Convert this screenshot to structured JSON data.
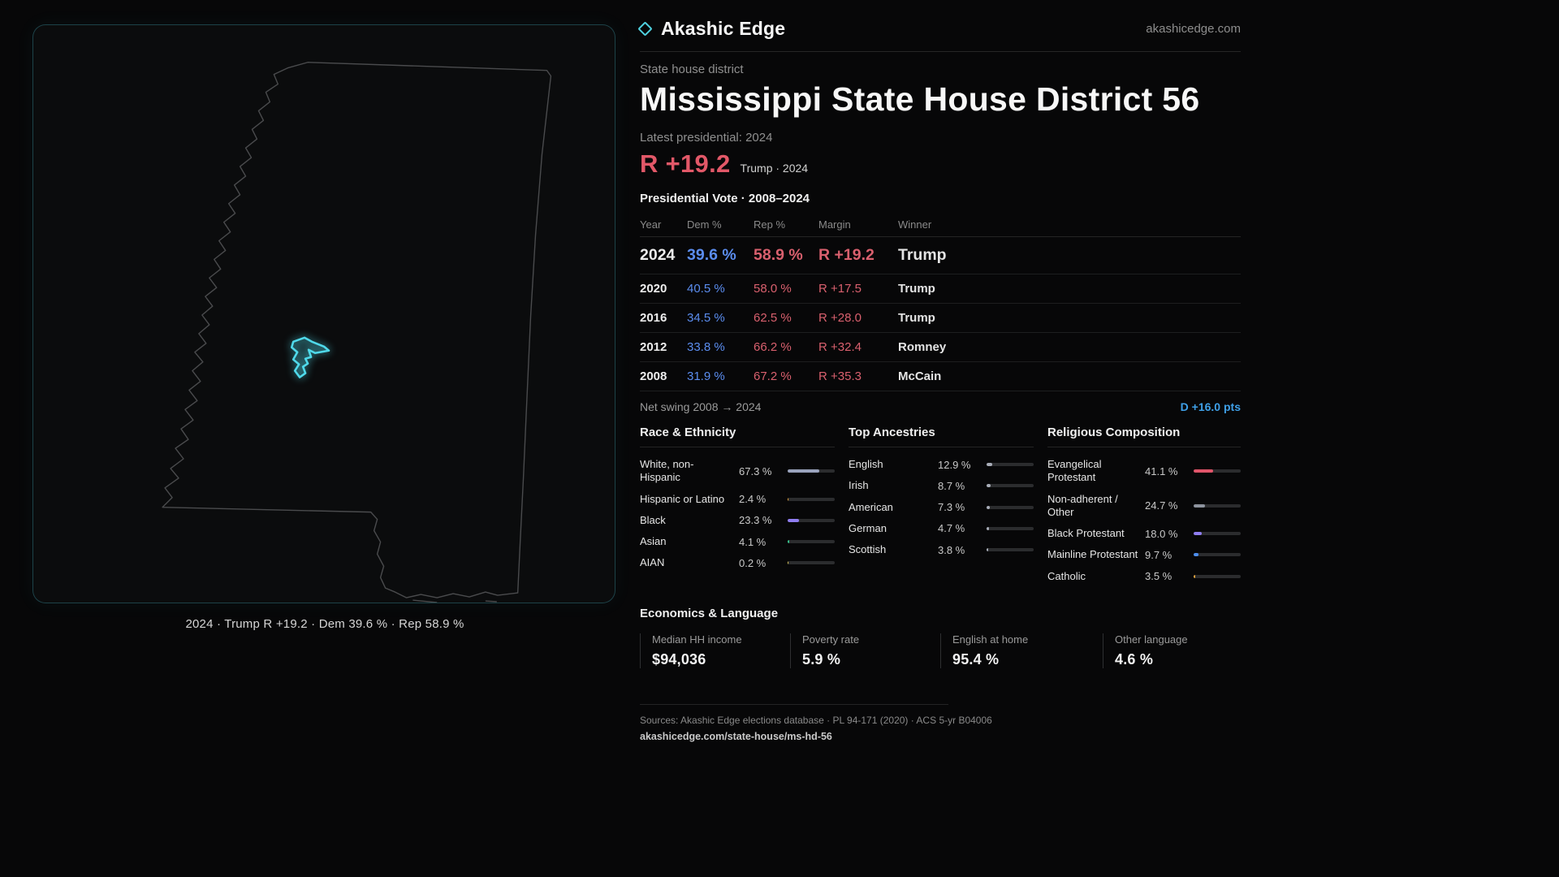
{
  "brand": {
    "name": "Akashic Edge",
    "domain": "akashicedge.com",
    "accent_color": "#4fd1e0"
  },
  "map": {
    "caption": "2024 · Trump R +19.2 · Dem 39.6 % · Rep 58.9 %"
  },
  "header": {
    "kicker": "State house district",
    "title": "Mississippi State House District 56",
    "latest_label": "Latest presidential: 2024",
    "margin_value": "R +19.2",
    "margin_sub": "Trump · 2024",
    "margin_color": "#e25868"
  },
  "vote_table": {
    "title": "Presidential Vote · 2008–2024",
    "columns": [
      "Year",
      "Dem %",
      "Rep %",
      "Margin",
      "Winner"
    ],
    "rows": [
      {
        "year": "2024",
        "dem": "39.6 %",
        "rep": "58.9 %",
        "margin": "R +19.2",
        "winner": "Trump"
      },
      {
        "year": "2020",
        "dem": "40.5 %",
        "rep": "58.0 %",
        "margin": "R +17.5",
        "winner": "Trump"
      },
      {
        "year": "2016",
        "dem": "34.5 %",
        "rep": "62.5 %",
        "margin": "R +28.0",
        "winner": "Trump"
      },
      {
        "year": "2012",
        "dem": "33.8 %",
        "rep": "66.2 %",
        "margin": "R +32.4",
        "winner": "Romney"
      },
      {
        "year": "2008",
        "dem": "31.9 %",
        "rep": "67.2 %",
        "margin": "R +35.3",
        "winner": "McCain"
      }
    ],
    "net_swing_label": "Net swing 2008 → 2024",
    "net_swing_value": "D +16.0 pts",
    "dem_color": "#5b8def",
    "rep_color": "#d9606e"
  },
  "demographics": {
    "race": {
      "title": "Race & Ethnicity",
      "items": [
        {
          "label": "White, non-Hispanic",
          "value": "67.3 %",
          "pct": 67.3,
          "color": "#9aa3bd"
        },
        {
          "label": "Hispanic or Latino",
          "value": "2.4 %",
          "pct": 2.4,
          "color": "#e2a23c"
        },
        {
          "label": "Black",
          "value": "23.3 %",
          "pct": 23.3,
          "color": "#8f7df0"
        },
        {
          "label": "Asian",
          "value": "4.1 %",
          "pct": 4.1,
          "color": "#35c08a"
        },
        {
          "label": "AIAN",
          "value": "0.2 %",
          "pct": 0.2,
          "color": "#d8c35a"
        }
      ]
    },
    "ancestries": {
      "title": "Top Ancestries",
      "items": [
        {
          "label": "English",
          "value": "12.9 %",
          "pct": 12.9,
          "color": "#a8adb8"
        },
        {
          "label": "Irish",
          "value": "8.7 %",
          "pct": 8.7,
          "color": "#a8adb8"
        },
        {
          "label": "American",
          "value": "7.3 %",
          "pct": 7.3,
          "color": "#a8adb8"
        },
        {
          "label": "German",
          "value": "4.7 %",
          "pct": 4.7,
          "color": "#a8adb8"
        },
        {
          "label": "Scottish",
          "value": "3.8 %",
          "pct": 3.8,
          "color": "#a8adb8"
        }
      ]
    },
    "religion": {
      "title": "Religious Composition",
      "items": [
        {
          "label": "Evangelical Protestant",
          "value": "41.1 %",
          "pct": 41.1,
          "color": "#e0556a"
        },
        {
          "label": "Non-adherent / Other",
          "value": "24.7 %",
          "pct": 24.7,
          "color": "#8d939e"
        },
        {
          "label": "Black Protestant",
          "value": "18.0 %",
          "pct": 18.0,
          "color": "#8f7df0"
        },
        {
          "label": "Mainline Protestant",
          "value": "9.7 %",
          "pct": 9.7,
          "color": "#4d8ef0"
        },
        {
          "label": "Catholic",
          "value": "3.5 %",
          "pct": 3.5,
          "color": "#e2a23c"
        }
      ]
    }
  },
  "economics": {
    "title": "Economics & Language",
    "stats": [
      {
        "label": "Median HH income",
        "value": "$94,036"
      },
      {
        "label": "Poverty rate",
        "value": "5.9 %"
      },
      {
        "label": "English at home",
        "value": "95.4 %"
      },
      {
        "label": "Other language",
        "value": "4.6 %"
      }
    ]
  },
  "footer": {
    "sources": "Sources: Akashic Edge elections database · PL 94-171 (2020) · ACS 5-yr B04006",
    "permalink": "akashicedge.com/state-house/ms-hd-56"
  },
  "chart_data": [
    {
      "type": "table",
      "title": "Presidential Vote · 2008–2024",
      "columns": [
        "Year",
        "Dem %",
        "Rep %",
        "Margin",
        "Winner"
      ],
      "rows": [
        [
          2024,
          39.6,
          58.9,
          "R +19.2",
          "Trump"
        ],
        [
          2020,
          40.5,
          58.0,
          "R +17.5",
          "Trump"
        ],
        [
          2016,
          34.5,
          62.5,
          "R +28.0",
          "Trump"
        ],
        [
          2012,
          33.8,
          66.2,
          "R +32.4",
          "Romney"
        ],
        [
          2008,
          31.9,
          67.2,
          "R +35.3",
          "McCain"
        ]
      ],
      "net_swing": "D +16.0 pts"
    },
    {
      "type": "bar",
      "title": "Race & Ethnicity",
      "categories": [
        "White, non-Hispanic",
        "Hispanic or Latino",
        "Black",
        "Asian",
        "AIAN"
      ],
      "values": [
        67.3,
        2.4,
        23.3,
        4.1,
        0.2
      ],
      "unit": "%",
      "xlim": [
        0,
        100
      ],
      "orientation": "horizontal"
    },
    {
      "type": "bar",
      "title": "Top Ancestries",
      "categories": [
        "English",
        "Irish",
        "American",
        "German",
        "Scottish"
      ],
      "values": [
        12.9,
        8.7,
        7.3,
        4.7,
        3.8
      ],
      "unit": "%",
      "xlim": [
        0,
        100
      ],
      "orientation": "horizontal"
    },
    {
      "type": "bar",
      "title": "Religious Composition",
      "categories": [
        "Evangelical Protestant",
        "Non-adherent / Other",
        "Black Protestant",
        "Mainline Protestant",
        "Catholic"
      ],
      "values": [
        41.1,
        24.7,
        18.0,
        9.7,
        3.5
      ],
      "unit": "%",
      "xlim": [
        0,
        100
      ],
      "orientation": "horizontal"
    }
  ]
}
